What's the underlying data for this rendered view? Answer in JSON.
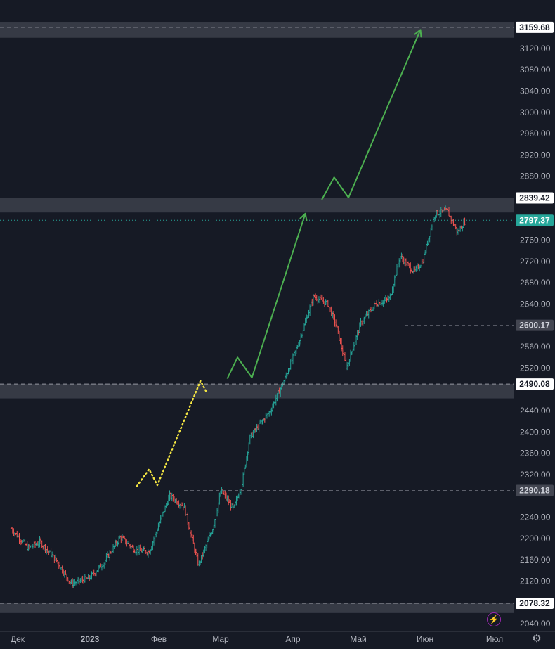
{
  "chart_data": {
    "type": "ohlc",
    "price_axis": {
      "min": 2040,
      "max": 3159.68,
      "ticks": [
        {
          "value": 3120,
          "label": "3120.00"
        },
        {
          "value": 3080,
          "label": "3080.00"
        },
        {
          "value": 3040,
          "label": "3040.00"
        },
        {
          "value": 3000,
          "label": "3000.00"
        },
        {
          "value": 2960,
          "label": "2960.00"
        },
        {
          "value": 2920,
          "label": "2920.00"
        },
        {
          "value": 2880,
          "label": "2880.00"
        },
        {
          "value": 2760,
          "label": "2760.00"
        },
        {
          "value": 2720,
          "label": "2720.00"
        },
        {
          "value": 2680,
          "label": "2680.00"
        },
        {
          "value": 2640,
          "label": "2640.00"
        },
        {
          "value": 2560,
          "label": "2560.00"
        },
        {
          "value": 2520,
          "label": "2520.00"
        },
        {
          "value": 2440,
          "label": "2440.00"
        },
        {
          "value": 2400,
          "label": "2400.00"
        },
        {
          "value": 2360,
          "label": "2360.00"
        },
        {
          "value": 2320,
          "label": "2320.00"
        },
        {
          "value": 2240,
          "label": "2240.00"
        },
        {
          "value": 2200,
          "label": "2200.00"
        },
        {
          "value": 2160,
          "label": "2160.00"
        },
        {
          "value": 2120,
          "label": "2120.00"
        },
        {
          "value": 2040,
          "label": "2040.00"
        }
      ]
    },
    "time_axis": {
      "labels": [
        {
          "label": "Дек",
          "bold": false
        },
        {
          "label": "2023",
          "bold": true
        },
        {
          "label": "Фев",
          "bold": false
        },
        {
          "label": "Мар",
          "bold": false
        },
        {
          "label": "Апр",
          "bold": false
        },
        {
          "label": "Май",
          "bold": false
        },
        {
          "label": "Июн",
          "bold": false
        },
        {
          "label": "Июл",
          "bold": false
        }
      ]
    },
    "levels": [
      {
        "value": 3159.68,
        "label": "3159.68",
        "zone": [
          3140,
          3170
        ]
      },
      {
        "value": 2839.42,
        "label": "2839.42",
        "zone": [
          2812,
          2840
        ]
      },
      {
        "value": 2490.08,
        "label": "2490.08",
        "zone": [
          2463,
          2490
        ]
      },
      {
        "value": 2078.32,
        "label": "2078.32",
        "zone": [
          2060,
          2078
        ]
      }
    ],
    "dashed_levels": [
      {
        "value": 2600.17,
        "label": "2600.17"
      },
      {
        "value": 2290.18,
        "label": "2290.18"
      }
    ],
    "last_price": {
      "value": 2797.37,
      "label": "2797.37"
    },
    "projection_paths": [
      {
        "style": "dotted",
        "color": "#f5e642",
        "points": [
          [
            "2023-01-28",
            2298
          ],
          [
            "2023-02-03",
            2330
          ],
          [
            "2023-02-07",
            2300
          ],
          [
            "2023-02-28",
            2496
          ],
          [
            "2023-03-03",
            2474
          ]
        ]
      },
      {
        "style": "solid-arrow",
        "color": "#4caf50",
        "points": [
          [
            "2023-03-13",
            2500
          ],
          [
            "2023-03-18",
            2540
          ],
          [
            "2023-03-25",
            2502
          ],
          [
            "2023-04-20",
            2810
          ]
        ]
      },
      {
        "style": "solid-arrow",
        "color": "#4caf50",
        "points": [
          [
            "2023-04-28",
            2836
          ],
          [
            "2023-05-04",
            2878
          ],
          [
            "2023-05-11",
            2840
          ],
          [
            "2023-06-15",
            3155
          ]
        ]
      }
    ],
    "colors": {
      "background": "#161a25",
      "up": "#26a69a",
      "down": "#ef5350",
      "zone": "#363a45",
      "last_price_tag": "#26a69a",
      "level_tag": "#ffffff",
      "dashed_tag": "#434651"
    },
    "ohlc_anchors": [
      [
        "2022-11-28",
        2218
      ],
      [
        "2022-12-06",
        2182
      ],
      [
        "2022-12-12",
        2193
      ],
      [
        "2022-12-20",
        2158
      ],
      [
        "2022-12-27",
        2115
      ],
      [
        "2023-01-05",
        2126
      ],
      [
        "2023-01-12",
        2155
      ],
      [
        "2023-01-20",
        2203
      ],
      [
        "2023-01-27",
        2178
      ],
      [
        "2023-02-03",
        2175
      ],
      [
        "2023-02-09",
        2240
      ],
      [
        "2023-02-13",
        2280
      ],
      [
        "2023-02-20",
        2260
      ],
      [
        "2023-02-27",
        2150
      ],
      [
        "2023-03-06",
        2220
      ],
      [
        "2023-03-10",
        2290
      ],
      [
        "2023-03-16",
        2255
      ],
      [
        "2023-03-20",
        2300
      ],
      [
        "2023-03-24",
        2390
      ],
      [
        "2023-04-03",
        2440
      ],
      [
        "2023-04-10",
        2500
      ],
      [
        "2023-04-17",
        2570
      ],
      [
        "2023-04-24",
        2655
      ],
      [
        "2023-05-01",
        2640
      ],
      [
        "2023-05-05",
        2600
      ],
      [
        "2023-05-10",
        2520
      ],
      [
        "2023-05-17",
        2605
      ],
      [
        "2023-05-24",
        2640
      ],
      [
        "2023-05-31",
        2650
      ],
      [
        "2023-06-05",
        2730
      ],
      [
        "2023-06-12",
        2700
      ],
      [
        "2023-06-16",
        2720
      ],
      [
        "2023-06-22",
        2810
      ],
      [
        "2023-06-28",
        2815
      ],
      [
        "2023-07-03",
        2775
      ],
      [
        "2023-07-07",
        2797.37
      ]
    ]
  }
}
